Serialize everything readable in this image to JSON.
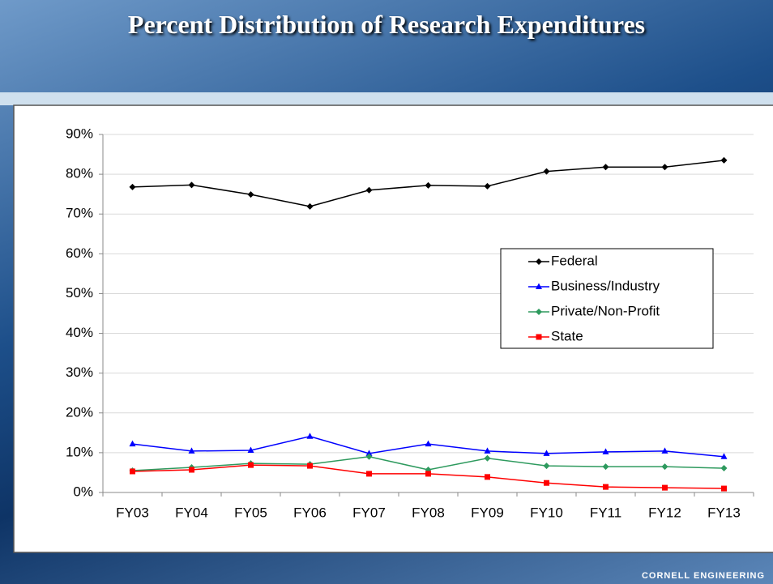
{
  "chart_data": {
    "type": "line",
    "title": "Percent Distribution of Research Expenditures",
    "categories": [
      "FY03",
      "FY04",
      "FY05",
      "FY06",
      "FY07",
      "FY08",
      "FY09",
      "FY10",
      "FY11",
      "FY12",
      "FY13"
    ],
    "series": [
      {
        "name": "Federal",
        "color": "#000000",
        "marker": "diamond",
        "values": [
          76.8,
          77.3,
          74.9,
          71.9,
          76.0,
          77.2,
          77.0,
          80.7,
          81.8,
          81.8,
          83.5
        ]
      },
      {
        "name": "Business/Industry",
        "color": "#0000ff",
        "marker": "triangle",
        "values": [
          12.2,
          10.4,
          10.6,
          14.1,
          9.8,
          12.2,
          10.4,
          9.8,
          10.2,
          10.4,
          9.0
        ]
      },
      {
        "name": "Private/Non-Profit",
        "color": "#2e9a5e",
        "marker": "diamond",
        "values": [
          5.5,
          6.3,
          7.3,
          7.1,
          9.0,
          5.7,
          8.6,
          6.7,
          6.5,
          6.5,
          6.1
        ]
      },
      {
        "name": "State",
        "color": "#ff0000",
        "marker": "square",
        "values": [
          5.3,
          5.7,
          6.9,
          6.7,
          4.7,
          4.7,
          3.9,
          2.4,
          1.4,
          1.2,
          1.0
        ]
      }
    ],
    "ylim": [
      0,
      90
    ],
    "yticks": [
      {
        "value": 0,
        "label": "0%"
      },
      {
        "value": 10,
        "label": "10%"
      },
      {
        "value": 20,
        "label": "20%"
      },
      {
        "value": 30,
        "label": "30%"
      },
      {
        "value": 40,
        "label": "40%"
      },
      {
        "value": 50,
        "label": "50%"
      },
      {
        "value": 60,
        "label": "60%"
      },
      {
        "value": 70,
        "label": "70%"
      },
      {
        "value": 80,
        "label": "80%"
      },
      {
        "value": 90,
        "label": "90%"
      }
    ],
    "grid": true,
    "legend": "right"
  },
  "footer": "CORNELL ENGINEERING"
}
